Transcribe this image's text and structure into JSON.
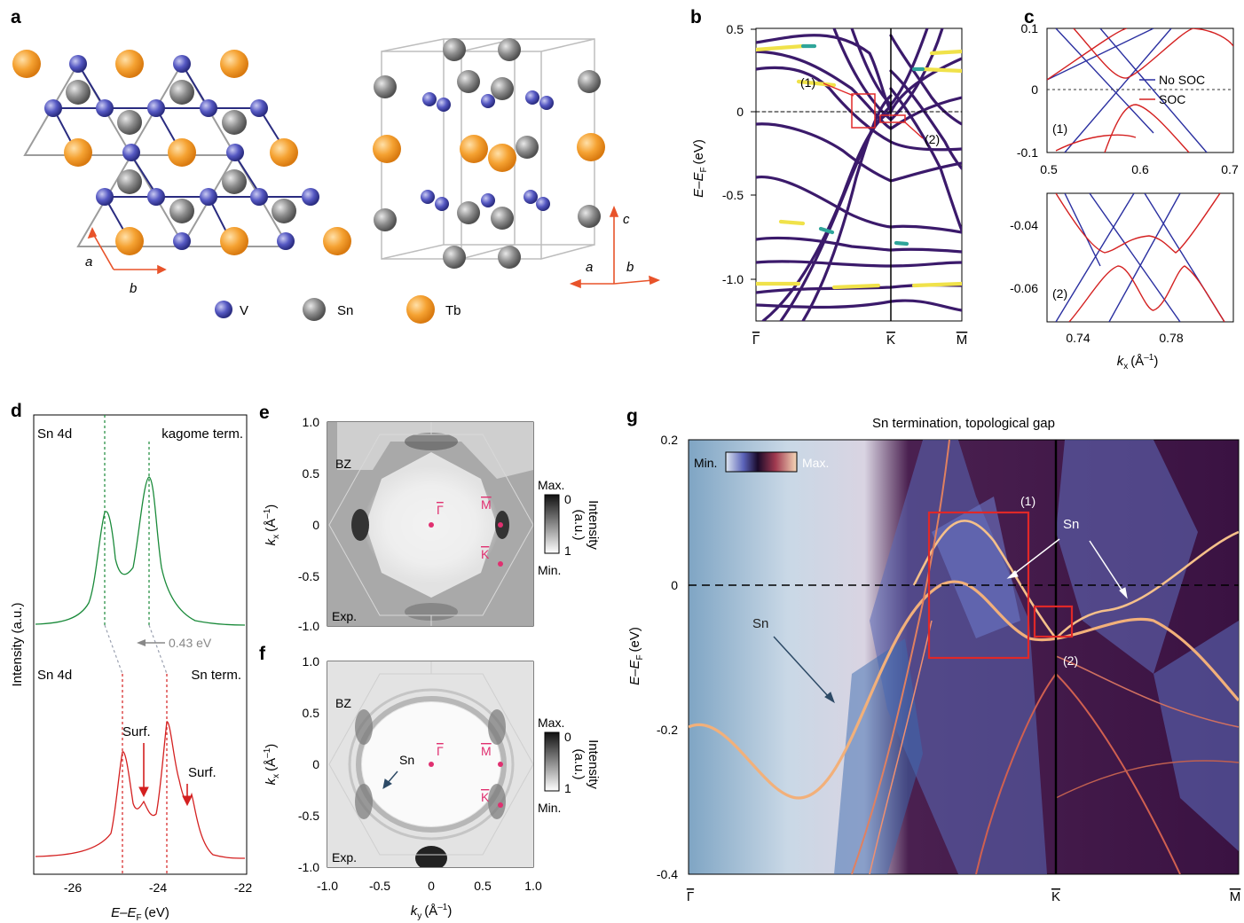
{
  "panel_labels": {
    "a": "a",
    "b": "b",
    "c": "c",
    "d": "d",
    "e": "e",
    "f": "f",
    "g": "g"
  },
  "panel_a": {
    "legend": [
      {
        "label": "V",
        "color": "#5a5cc4"
      },
      {
        "label": "Sn",
        "color": "#8a8a8a"
      },
      {
        "label": "Tb",
        "color": "#f5a232"
      }
    ],
    "axis_a": "a",
    "axis_b": "b",
    "axis_c": "c",
    "arrow_color": "#e8532a"
  },
  "panel_b": {
    "yticks": [
      "0.5",
      "0",
      "-0.5",
      "-1.0"
    ],
    "xticks": [
      "Γ",
      "K",
      "M"
    ],
    "ylabel": "E–E",
    "ylabel_sub": "F",
    "ylabel_unit": "(eV)",
    "box1": "(1)",
    "box2": "(2)",
    "colors": {
      "band": "#3b1a6b",
      "surface": "#f0e24a",
      "mid": "#2fa59a"
    }
  },
  "panel_c": {
    "top": {
      "yticks": [
        "0.1",
        "0",
        "-0.1"
      ],
      "xticks": [
        "0.5",
        "0.6",
        "0.7"
      ],
      "tag": "(1)"
    },
    "bottom": {
      "yticks": [
        "-0.04",
        "-0.06"
      ],
      "xticks": [
        "0.74",
        "0.78"
      ],
      "tag": "(2)"
    },
    "legend": [
      {
        "label": "No SOC",
        "color": "#2a2fa0"
      },
      {
        "label": "SOC",
        "color": "#d42020"
      }
    ],
    "xlabel": "k",
    "xlabel_sub": "x",
    "xlabel_unit": "(Å",
    "xlabel_sup": "–1",
    "xlabel_close": ")"
  },
  "panel_d": {
    "top_label": "Sn 4d",
    "top_right": "kagome term.",
    "shift": "0.43 eV",
    "bot_label": "Sn 4d",
    "bot_right": "Sn term.",
    "surf1": "Surf.",
    "surf2": "Surf.",
    "ylabel": "Intensity (a.u.)",
    "xticks": [
      "-26",
      "-24",
      "-22"
    ],
    "xlabel": "E–E",
    "xlabel_sub": "F",
    "xlabel_unit": "(eV)",
    "colors": {
      "top": "#1a8a3a",
      "bottom": "#d42020",
      "shift": "#888888"
    }
  },
  "panel_e": {
    "bz": "BZ",
    "exp": "Exp.",
    "gamma": "Γ",
    "m": "M",
    "k": "K",
    "ylabel": "k",
    "ylabel_sub": "x",
    "ylabel_unit": "(Å",
    "ylabel_sup": "–1",
    "ylabel_close": ")",
    "ticks": [
      "1.0",
      "0.5",
      "0",
      "-0.5",
      "-1.0"
    ],
    "cbar_max": "Max.",
    "cbar_min": "Min.",
    "cbar_0": "0",
    "cbar_1": "1",
    "cbar_label": "Intensity",
    "cbar_unit": "(a.u.)",
    "marker_color": "#e03070"
  },
  "panel_f": {
    "bz": "BZ",
    "exp": "Exp.",
    "sn": "Sn",
    "gamma": "Γ",
    "m": "M",
    "k": "K",
    "ylabel": "k",
    "ylabel_sub": "x",
    "ylabel_unit": "(Å",
    "ylabel_sup": "–1",
    "ylabel_close": ")",
    "ticks": [
      "1.0",
      "0.5",
      "0",
      "-0.5",
      "-1.0"
    ],
    "xticks": [
      "-1.0",
      "-0.5",
      "0",
      "0.5",
      "1.0"
    ],
    "xlabel": "k",
    "xlabel_sub": "y",
    "xlabel_unit": "(Å",
    "xlabel_sup": "–1",
    "xlabel_close": ")",
    "cbar_max": "Max.",
    "cbar_min": "Min.",
    "cbar_0": "0",
    "cbar_1": "1",
    "cbar_label": "Intensity",
    "cbar_unit": "(a.u.)"
  },
  "panel_g": {
    "title": "Sn termination, topological gap",
    "cbar_min": "Min.",
    "cbar_max": "Max.",
    "yticks": [
      "0.2",
      "0",
      "-0.2",
      "-0.4"
    ],
    "xticks": [
      "Γ",
      "K",
      "M"
    ],
    "ylabel": "E–E",
    "ylabel_sub": "F",
    "ylabel_unit": "(eV)",
    "box1": "(1)",
    "box2": "(2)",
    "sn_labels": [
      "Sn",
      "Sn"
    ],
    "colors": {
      "bg_left": "#8fb3cf",
      "bg_right": "#3a1040",
      "band": "#f2b07a",
      "box": "#e02828"
    }
  }
}
